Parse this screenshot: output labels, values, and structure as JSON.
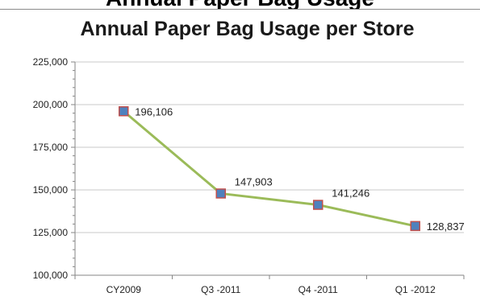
{
  "header": {
    "cut_title": "Annual Paper Bag Usage"
  },
  "chart_data": {
    "type": "line",
    "title": "Annual Paper Bag Usage per Store",
    "xlabel": "",
    "ylabel": "",
    "categories": [
      "CY2009",
      "Q3 -2011",
      "Q4 -2011",
      "Q1 -2012"
    ],
    "series": [
      {
        "values": [
          196106,
          147903,
          141246,
          128837
        ],
        "data_labels": [
          "196,106",
          "147,903",
          "141,246",
          "128,837"
        ],
        "line_color": "#9BBB59",
        "marker_fill": "#4F81BD",
        "marker_edge": "#C0504D"
      }
    ],
    "ylim": [
      100000,
      225000
    ],
    "y_ticks": [
      100000,
      125000,
      150000,
      175000,
      200000,
      225000
    ],
    "y_tick_labels": [
      "100,000",
      "125,000",
      "150,000",
      "175,000",
      "200,000",
      "225,000"
    ],
    "grid": true,
    "grid_color": "#C8C8C8",
    "legend": "none"
  }
}
